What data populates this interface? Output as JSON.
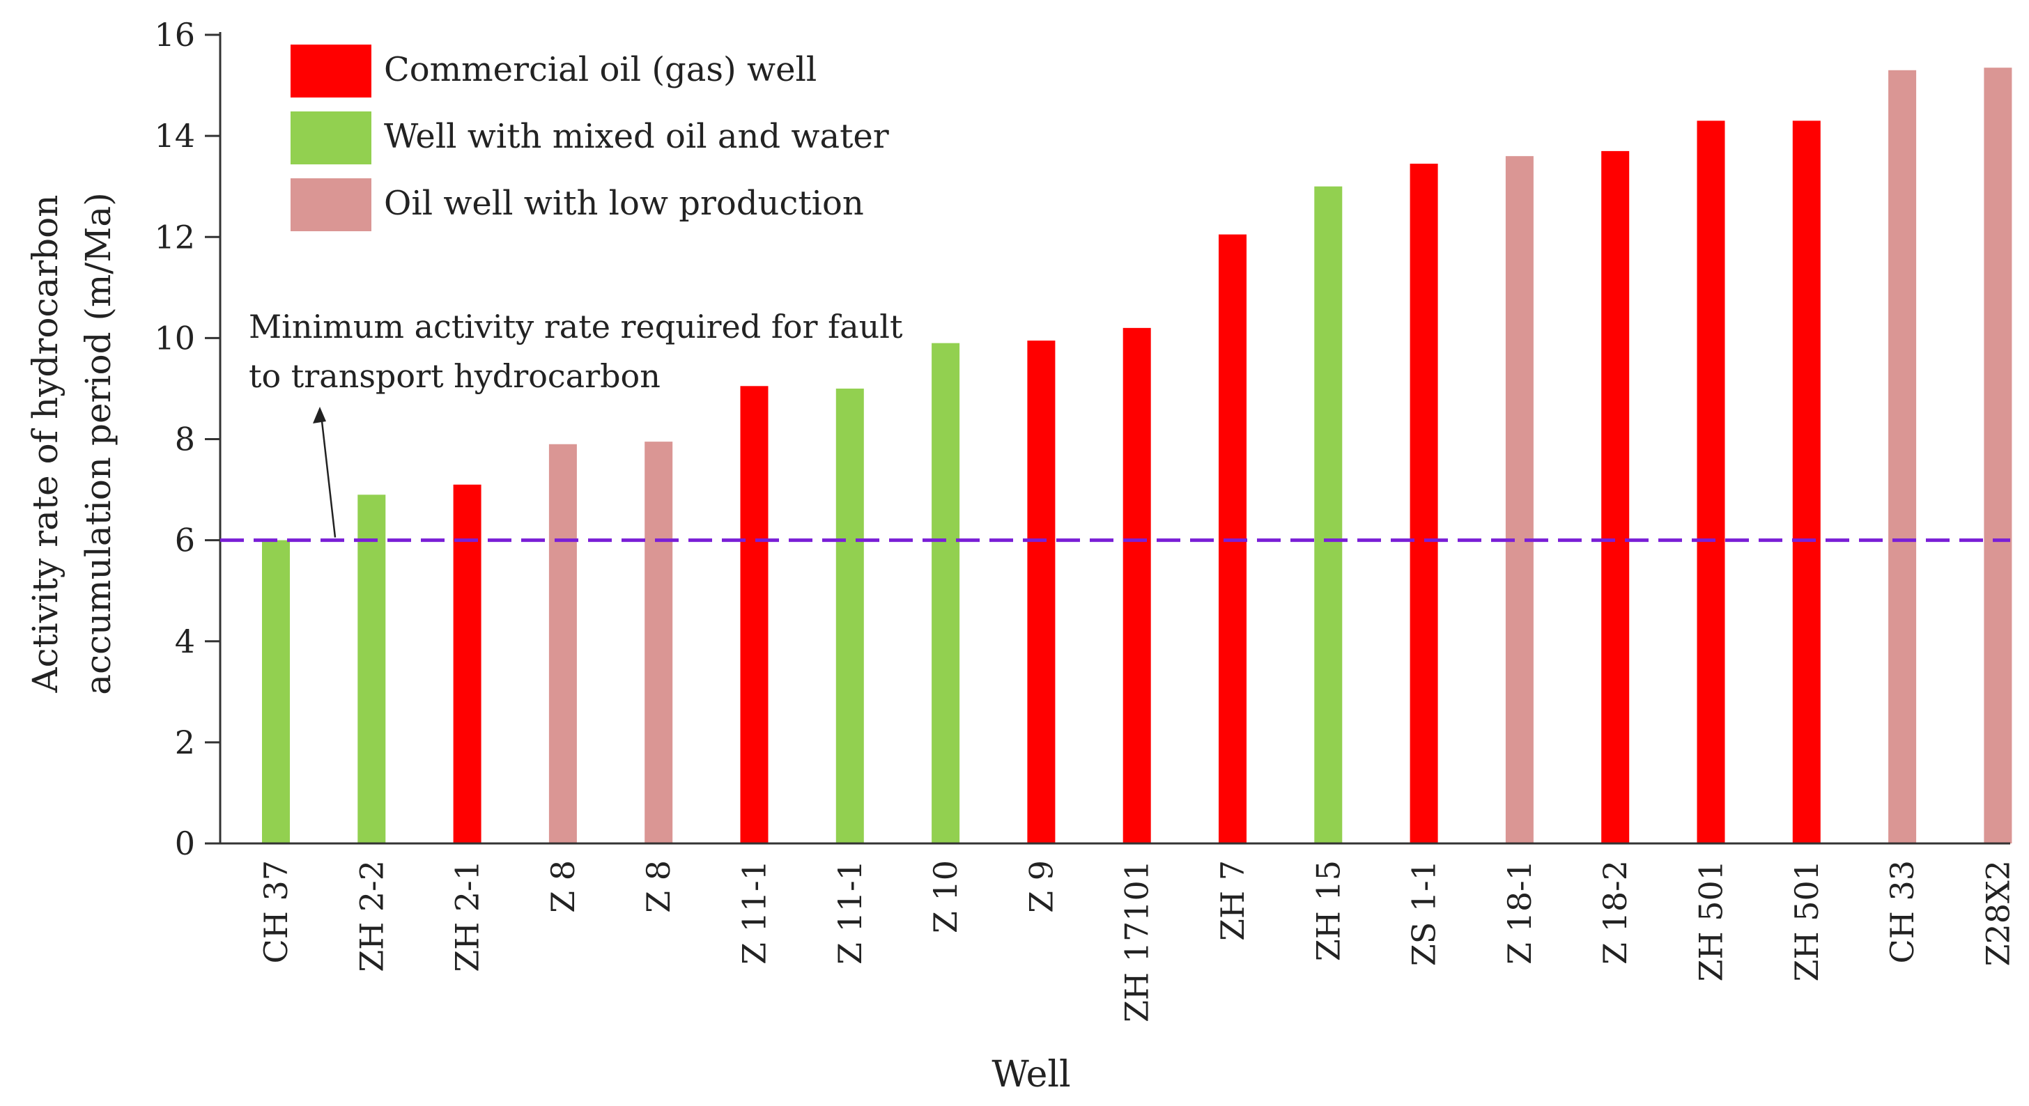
{
  "chart_data": {
    "type": "bar",
    "title": "",
    "xlabel": "Well",
    "ylabel_line1": "Activity rate of hydrocarbon",
    "ylabel_line2": "accumulation period (m/Ma)",
    "ylim": [
      0,
      16
    ],
    "yticks": [
      0,
      2,
      4,
      6,
      8,
      10,
      12,
      14,
      16
    ],
    "grid": false,
    "legend_position": "top-left",
    "categories": [
      "CH 37",
      "ZH 2-2",
      "ZH 2-1",
      "Z 8",
      "Z 8",
      "Z 11-1",
      "Z 11-1",
      "Z 10",
      "Z 9",
      "ZH 17101",
      "ZH 7",
      "ZH 15",
      "ZS 1-1",
      "Z 18-1",
      "Z 18-2",
      "ZH 501",
      "ZH 501",
      "CH 33",
      "Z28X2"
    ],
    "values": [
      6.0,
      6.9,
      7.1,
      7.9,
      7.95,
      9.05,
      9.0,
      9.9,
      9.95,
      10.2,
      12.05,
      13.0,
      13.45,
      13.6,
      13.7,
      14.3,
      14.3,
      15.3,
      15.35
    ],
    "bar_classes": [
      "mixed",
      "mixed",
      "commercial",
      "low",
      "low",
      "commercial",
      "mixed",
      "mixed",
      "commercial",
      "commercial",
      "commercial",
      "mixed",
      "commercial",
      "low",
      "commercial",
      "commercial",
      "commercial",
      "low",
      "low"
    ],
    "legend": [
      {
        "key": "commercial",
        "label": "Commercial oil (gas) well",
        "color": "#ff0000"
      },
      {
        "key": "mixed",
        "label": "Well with mixed oil and water",
        "color": "#92d050"
      },
      {
        "key": "low",
        "label": "Oil well with low production",
        "color": "#da9694"
      }
    ],
    "threshold": {
      "value": 6,
      "color": "#7a1fd6",
      "label_line1": "Minimum activity rate required for fault",
      "label_line2": "to transport hydrocarbon"
    }
  }
}
